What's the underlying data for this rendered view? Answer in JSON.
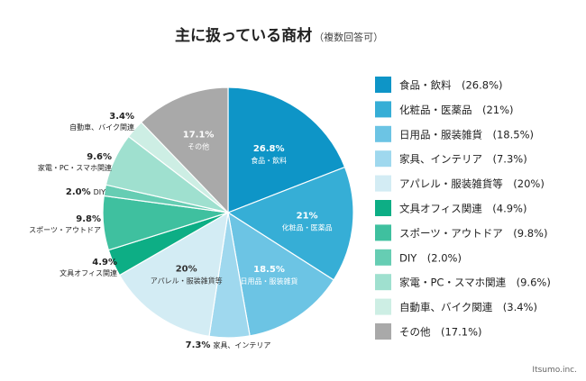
{
  "chart_data": {
    "type": "pie",
    "title": "主に扱っている商材",
    "subtitle": "（複数回答可）",
    "slices": [
      {
        "name": "食品・飲料",
        "value": 26.8,
        "label": "26.8%",
        "color": "#0e95c7",
        "legend": "食品・飲料　(26.8%)"
      },
      {
        "name": "化粧品・医薬品",
        "value": 21,
        "label": "21%",
        "color": "#36aed6",
        "legend": "化粧品・医薬品　(21%)"
      },
      {
        "name": "日用品・服装雑貨",
        "value": 18.5,
        "label": "18.5%",
        "color": "#6cc4e4",
        "legend": "日用品・服装雑貨　(18.5%)"
      },
      {
        "name": "家具、インテリア",
        "value": 7.3,
        "label": "7.3%",
        "color": "#9fd8ee",
        "legend": "家具、インテリア　(7.3%)"
      },
      {
        "name": "アパレル・服装雑貨等",
        "value": 20,
        "label": "20%",
        "color": "#d3ecf4",
        "legend": "アパレル・服装雑貨等　(20%)"
      },
      {
        "name": "文具オフィス関連",
        "value": 4.9,
        "label": "4.9%",
        "color": "#0dae85",
        "legend": "文具オフィス関連　(4.9%)"
      },
      {
        "name": "スポーツ・アウトドア",
        "value": 9.8,
        "label": "9.8%",
        "color": "#3fc09f",
        "legend": "スポーツ・アウトドア　(9.8%)"
      },
      {
        "name": "DIY",
        "value": 2.0,
        "label": "2.0%",
        "color": "#66cdb3",
        "legend": "DIY　(2.0%)"
      },
      {
        "name": "家電・PC・スマホ関連",
        "value": 9.6,
        "label": "9.6%",
        "color": "#9fe0cf",
        "legend": "家電・PC・スマホ関連　(9.6%)"
      },
      {
        "name": "自動車、バイク関連",
        "value": 3.4,
        "label": "3.4%",
        "color": "#cdeee4",
        "legend": "自動車、バイク関連　(3.4%)"
      },
      {
        "name": "その他",
        "value": 17.1,
        "label": "17.1%",
        "color": "#a9a9a9",
        "legend": "その他　(17.1%)"
      }
    ],
    "credit": "Itsumo.inc."
  }
}
